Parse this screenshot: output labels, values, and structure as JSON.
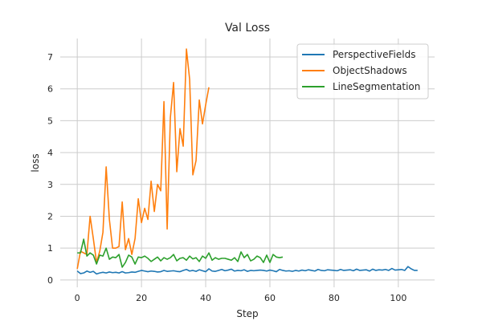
{
  "chart_data": {
    "type": "line",
    "title": "Val Loss",
    "xlabel": "Step",
    "ylabel": "loss",
    "xlim": [
      -5.3,
      111.3
    ],
    "ylim": [
      -0.23,
      7.58
    ],
    "xticks": [
      0,
      20,
      40,
      60,
      80,
      100
    ],
    "yticks": [
      0,
      1,
      2,
      3,
      4,
      5,
      6,
      7
    ],
    "grid": true,
    "legend_position": "top-right",
    "series": [
      {
        "name": "PerspectiveFields",
        "color": "#1f77b4",
        "x": [
          0,
          1,
          2,
          3,
          4,
          5,
          6,
          7,
          8,
          9,
          10,
          11,
          12,
          13,
          14,
          15,
          16,
          17,
          18,
          19,
          20,
          21,
          22,
          23,
          24,
          25,
          26,
          27,
          28,
          29,
          30,
          31,
          32,
          33,
          34,
          35,
          36,
          37,
          38,
          39,
          40,
          41,
          42,
          43,
          44,
          45,
          46,
          47,
          48,
          49,
          50,
          51,
          52,
          53,
          54,
          55,
          56,
          57,
          58,
          59,
          60,
          61,
          62,
          63,
          64,
          65,
          66,
          67,
          68,
          69,
          70,
          71,
          72,
          73,
          74,
          75,
          76,
          77,
          78,
          79,
          80,
          81,
          82,
          83,
          84,
          85,
          86,
          87,
          88,
          89,
          90,
          91,
          92,
          93,
          94,
          95,
          96,
          97,
          98,
          99,
          100,
          101,
          102,
          103,
          104,
          105,
          106
        ],
        "values": [
          0.28,
          0.2,
          0.22,
          0.28,
          0.24,
          0.27,
          0.19,
          0.22,
          0.24,
          0.22,
          0.25,
          0.23,
          0.24,
          0.22,
          0.26,
          0.22,
          0.23,
          0.25,
          0.24,
          0.27,
          0.3,
          0.28,
          0.26,
          0.28,
          0.27,
          0.25,
          0.26,
          0.3,
          0.27,
          0.28,
          0.29,
          0.27,
          0.26,
          0.3,
          0.33,
          0.28,
          0.3,
          0.27,
          0.32,
          0.29,
          0.26,
          0.35,
          0.28,
          0.27,
          0.3,
          0.33,
          0.29,
          0.31,
          0.34,
          0.28,
          0.3,
          0.29,
          0.32,
          0.27,
          0.3,
          0.29,
          0.3,
          0.31,
          0.3,
          0.28,
          0.31,
          0.29,
          0.26,
          0.33,
          0.3,
          0.28,
          0.29,
          0.27,
          0.3,
          0.28,
          0.31,
          0.29,
          0.32,
          0.3,
          0.28,
          0.33,
          0.3,
          0.29,
          0.32,
          0.31,
          0.3,
          0.29,
          0.33,
          0.3,
          0.31,
          0.32,
          0.29,
          0.34,
          0.3,
          0.31,
          0.32,
          0.28,
          0.34,
          0.3,
          0.32,
          0.31,
          0.33,
          0.3,
          0.36,
          0.31,
          0.32,
          0.33,
          0.3,
          0.42,
          0.35,
          0.3,
          0.3
        ]
      },
      {
        "name": "ObjectShadows",
        "color": "#ff7f0e",
        "x": [
          0,
          1,
          2,
          3,
          4,
          5,
          6,
          7,
          8,
          9,
          10,
          11,
          12,
          13,
          14,
          15,
          16,
          17,
          18,
          19,
          20,
          21,
          22,
          23,
          24,
          25,
          26,
          27,
          28,
          29,
          30,
          31,
          32,
          33,
          34,
          35,
          36,
          37,
          38,
          39,
          40,
          41
        ],
        "values": [
          0.35,
          0.9,
          0.85,
          0.8,
          2.0,
          1.3,
          0.55,
          0.9,
          1.5,
          3.55,
          1.9,
          1.0,
          1.0,
          1.05,
          2.45,
          0.95,
          1.3,
          0.8,
          1.3,
          2.55,
          1.8,
          2.25,
          1.9,
          3.1,
          2.15,
          3.0,
          2.8,
          5.6,
          1.6,
          5.1,
          6.2,
          3.4,
          4.75,
          4.2,
          7.25,
          6.3,
          3.3,
          3.75,
          5.65,
          4.9,
          5.5,
          6.05
        ]
      },
      {
        "name": "LineSegmentation",
        "color": "#2ca02c",
        "x": [
          0,
          1,
          2,
          3,
          4,
          5,
          6,
          7,
          8,
          9,
          10,
          11,
          12,
          13,
          14,
          15,
          16,
          17,
          18,
          19,
          20,
          21,
          22,
          23,
          24,
          25,
          26,
          27,
          28,
          29,
          30,
          31,
          32,
          33,
          34,
          35,
          36,
          37,
          38,
          39,
          40,
          41,
          42,
          43,
          44,
          45,
          46,
          47,
          48,
          49,
          50,
          51,
          52,
          53,
          54,
          55,
          56,
          57,
          58,
          59,
          60,
          61,
          62,
          63,
          64
        ],
        "values": [
          0.85,
          0.85,
          1.28,
          0.75,
          0.85,
          0.78,
          0.5,
          0.78,
          0.75,
          1.0,
          0.65,
          0.72,
          0.7,
          0.8,
          0.4,
          0.55,
          0.78,
          0.72,
          0.5,
          0.72,
          0.7,
          0.75,
          0.68,
          0.58,
          0.65,
          0.72,
          0.6,
          0.7,
          0.65,
          0.7,
          0.8,
          0.6,
          0.68,
          0.7,
          0.62,
          0.75,
          0.66,
          0.7,
          0.58,
          0.75,
          0.68,
          0.85,
          0.62,
          0.7,
          0.65,
          0.68,
          0.68,
          0.65,
          0.62,
          0.7,
          0.58,
          0.88,
          0.7,
          0.8,
          0.6,
          0.65,
          0.75,
          0.7,
          0.55,
          0.78,
          0.55,
          0.8,
          0.72,
          0.7,
          0.72
        ]
      }
    ]
  }
}
